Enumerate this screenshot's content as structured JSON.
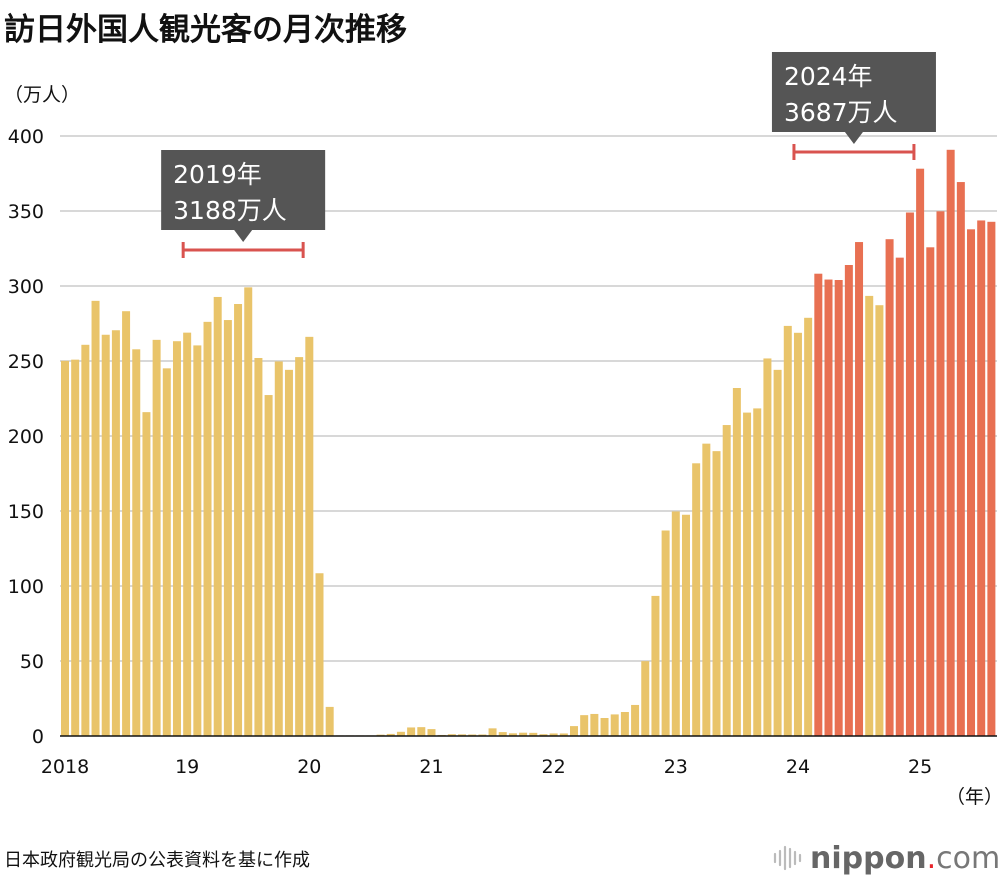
{
  "chart_data": {
    "type": "bar",
    "title": "訪日外国人観光客の月次推移",
    "ylabel": "（万人）",
    "xlabel": "（年）",
    "ylim": [
      0,
      400
    ],
    "yticks": [
      0,
      50,
      100,
      150,
      200,
      250,
      300,
      350,
      400
    ],
    "grid": true,
    "x_tick_labels": [
      {
        "month": "2018-01",
        "label": "2018"
      },
      {
        "month": "2019-01",
        "label": "19"
      },
      {
        "month": "2020-01",
        "label": "20"
      },
      {
        "month": "2021-01",
        "label": "21"
      },
      {
        "month": "2022-01",
        "label": "22"
      },
      {
        "month": "2023-01",
        "label": "23"
      },
      {
        "month": "2024-01",
        "label": "24"
      },
      {
        "month": "2025-01",
        "label": "25"
      }
    ],
    "start_month": "2018-01",
    "values": [
      250.1,
      250.9,
      260.8,
      290.1,
      267.5,
      270.5,
      283.2,
      257.8,
      215.9,
      264.1,
      245.1,
      263.2,
      268.9,
      260.4,
      276.1,
      292.7,
      277.3,
      288.0,
      299.1,
      252.0,
      227.3,
      249.7,
      244.1,
      252.6,
      266.1,
      108.5,
      19.4,
      0.3,
      0.2,
      0.3,
      0.4,
      0.9,
      1.4,
      2.8,
      5.7,
      5.9,
      4.6,
      0.7,
      1.2,
      1.1,
      1.0,
      1.0,
      5.1,
      2.6,
      1.8,
      2.2,
      2.1,
      1.2,
      1.7,
      1.7,
      6.6,
      13.9,
      14.7,
      12.0,
      14.4,
      16.0,
      20.7,
      49.9,
      93.4,
      137.0,
      149.7,
      147.5,
      181.8,
      194.9,
      189.9,
      207.3,
      232.0,
      215.6,
      218.4,
      251.7,
      244.1,
      273.4,
      268.8,
      278.8,
      308.2,
      304.3,
      304.0,
      314.0,
      329.3,
      293.4,
      287.2,
      331.2,
      318.9,
      349.0,
      378.2,
      325.8,
      349.8,
      390.8,
      369.3,
      337.8,
      343.7,
      342.8
    ],
    "colors": {
      "below_300": "#E9C46A",
      "at_or_above_300": "#E87052",
      "grid": "#cccccc",
      "bracket": "#d9534f",
      "callout_bg": "#555555"
    },
    "highlight_threshold": 300,
    "annotations": [
      {
        "year": "2019",
        "line1": "2019年",
        "line2": "3188万人"
      },
      {
        "year": "2024",
        "line1": "2024年",
        "line2": "3687万人"
      }
    ]
  },
  "source": "日本政府観光局の公表資料を基に作成",
  "logo": {
    "name": "nippon",
    "dot": ".",
    "suffix": "com",
    "icon": "sound-wave-icon"
  }
}
